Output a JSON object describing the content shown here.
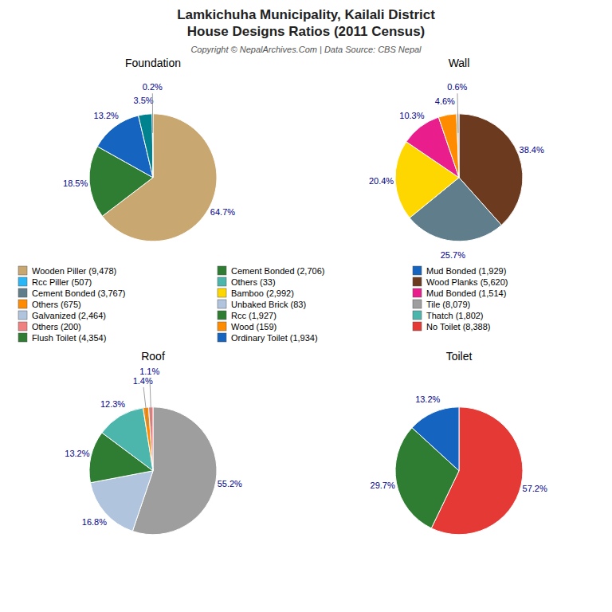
{
  "title": [
    "Lamkichuha Municipality, Kailali District",
    "House Designs Ratios (2011 Census)"
  ],
  "subtitle": "Copyright © NepalArchives.Com | Data Source: CBS Nepal",
  "chart_data": [
    {
      "type": "pie",
      "title": "Foundation",
      "values": [
        64.7,
        18.5,
        13.2,
        3.5,
        0.2
      ],
      "value_labels": [
        "64.7%",
        "18.5%",
        "13.2%",
        "3.5%",
        "0.2%"
      ],
      "colors": [
        "#C8A870",
        "#2E7D32",
        "#1565C0",
        "#00838F",
        "#29B6F6"
      ],
      "data_labels": true
    },
    {
      "type": "pie",
      "title": "Wall",
      "values": [
        38.4,
        25.7,
        20.4,
        10.3,
        4.6,
        0.6
      ],
      "value_labels": [
        "38.4%",
        "25.7%",
        "20.4%",
        "10.3%",
        "4.6%",
        "0.6%"
      ],
      "colors": [
        "#6B3A1F",
        "#607D8B",
        "#FFD700",
        "#E91E8C",
        "#FF8C00",
        "#BDBDBD"
      ],
      "data_labels": true
    },
    {
      "type": "pie",
      "title": "Roof",
      "values": [
        55.2,
        16.8,
        13.2,
        12.3,
        1.4,
        1.1
      ],
      "value_labels": [
        "55.2%",
        "16.8%",
        "13.2%",
        "12.3%",
        "1.4%",
        "1.1%"
      ],
      "colors": [
        "#9E9E9E",
        "#B0C4DE",
        "#2E7D32",
        "#4DB6AC",
        "#FF8C00",
        "#F08080"
      ],
      "data_labels": true
    },
    {
      "type": "pie",
      "title": "Toilet",
      "values": [
        57.2,
        29.7,
        13.2
      ],
      "value_labels": [
        "57.2%",
        "29.7%",
        "13.2%"
      ],
      "colors": [
        "#E53935",
        "#2E7D32",
        "#1565C0"
      ],
      "data_labels": true
    }
  ],
  "legend_entries": [
    {
      "name": "Wooden Piller (9,478)",
      "color": "#C8A870"
    },
    {
      "name": "Rcc Piller (507)",
      "color": "#29B6F6"
    },
    {
      "name": "Cement Bonded (3,767)",
      "color": "#607D8B"
    },
    {
      "name": "Others (675)",
      "color": "#FF8C00"
    },
    {
      "name": "Galvanized (2,464)",
      "color": "#B0C4DE"
    },
    {
      "name": "Others (200)",
      "color": "#F08080"
    },
    {
      "name": "Flush Toilet (4,354)",
      "color": "#2E7D32"
    },
    {
      "name": "Cement Bonded (2,706)",
      "color": "#2E7D32"
    },
    {
      "name": "Others (33)",
      "color": "#4DB6AC"
    },
    {
      "name": "Bamboo (2,992)",
      "color": "#FFD700"
    },
    {
      "name": "Unbaked Brick (83)",
      "color": "#B0C4DE"
    },
    {
      "name": "Rcc (1,927)",
      "color": "#2E7D32"
    },
    {
      "name": "Wood (159)",
      "color": "#FF8C00"
    },
    {
      "name": "Ordinary Toilet (1,934)",
      "color": "#1565C0"
    },
    {
      "name": "Mud Bonded (1,929)",
      "color": "#1565C0"
    },
    {
      "name": "Wood Planks (5,620)",
      "color": "#6B3A1F"
    },
    {
      "name": "Mud Bonded (1,514)",
      "color": "#E91E8C"
    },
    {
      "name": "Tile (8,079)",
      "color": "#9E9E9E"
    },
    {
      "name": "Thatch (1,802)",
      "color": "#4DB6AC"
    },
    {
      "name": "No Toilet (8,388)",
      "color": "#E53935"
    }
  ]
}
